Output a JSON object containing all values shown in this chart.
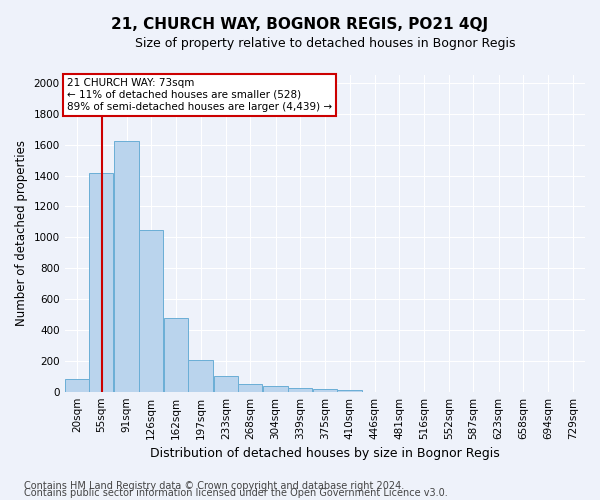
{
  "title": "21, CHURCH WAY, BOGNOR REGIS, PO21 4QJ",
  "subtitle": "Size of property relative to detached houses in Bognor Regis",
  "xlabel": "Distribution of detached houses by size in Bognor Regis",
  "ylabel": "Number of detached properties",
  "bar_color": "#bad4ed",
  "bar_edge_color": "#6aaed6",
  "categories": [
    "20sqm",
    "55sqm",
    "91sqm",
    "126sqm",
    "162sqm",
    "197sqm",
    "233sqm",
    "268sqm",
    "304sqm",
    "339sqm",
    "375sqm",
    "410sqm",
    "446sqm",
    "481sqm",
    "516sqm",
    "552sqm",
    "587sqm",
    "623sqm",
    "658sqm",
    "694sqm",
    "729sqm"
  ],
  "values": [
    80,
    1420,
    1625,
    1050,
    480,
    205,
    100,
    48,
    35,
    22,
    18,
    8,
    0,
    0,
    0,
    0,
    0,
    0,
    0,
    0,
    0
  ],
  "ylim": [
    0,
    2050
  ],
  "yticks": [
    0,
    200,
    400,
    600,
    800,
    1000,
    1200,
    1400,
    1600,
    1800,
    2000
  ],
  "property_line_x": 73,
  "property_line_label": "21 CHURCH WAY: 73sqm",
  "annotation_line1": "← 11% of detached houses are smaller (528)",
  "annotation_line2": "89% of semi-detached houses are larger (4,439) →",
  "annotation_box_facecolor": "#ffffff",
  "annotation_box_edgecolor": "#cc0000",
  "red_line_color": "#cc0000",
  "footer_line1": "Contains HM Land Registry data © Crown copyright and database right 2024.",
  "footer_line2": "Contains public sector information licensed under the Open Government Licence v3.0.",
  "background_color": "#eef2fa",
  "plot_bg_color": "#eef2fa",
  "grid_color": "#ffffff",
  "title_fontsize": 11,
  "subtitle_fontsize": 9,
  "xlabel_fontsize": 9,
  "ylabel_fontsize": 8.5,
  "tick_fontsize": 7.5,
  "footer_fontsize": 7,
  "bin_width": 35
}
